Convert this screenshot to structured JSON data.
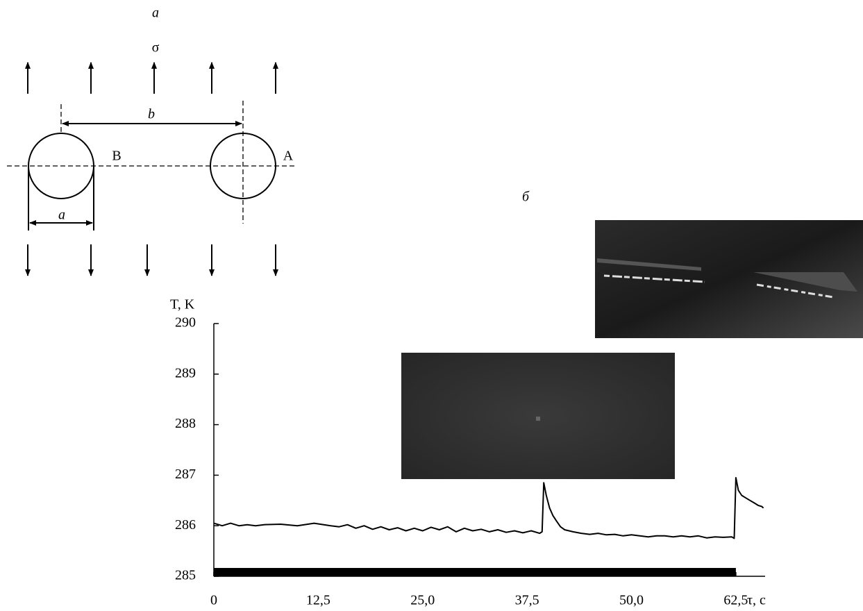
{
  "diagram": {
    "label": "a",
    "sigma": "σ",
    "b": "b",
    "point_b": "B",
    "point_a": "A",
    "a": "a"
  },
  "chart_data": {
    "type": "line",
    "panel_label": "б",
    "ylabel": "T, K",
    "xlabel": "τ, c",
    "x": [
      0,
      1,
      2,
      3,
      4,
      5,
      6,
      8,
      10,
      12,
      14,
      15,
      16,
      17,
      18,
      19,
      20,
      21,
      22,
      23,
      24,
      25,
      26,
      27,
      28,
      29,
      30,
      31,
      32,
      33,
      34,
      35,
      36,
      37,
      38,
      39,
      39.3,
      39.5,
      39.8,
      40.2,
      40.6,
      41,
      41.5,
      42,
      43,
      44,
      45,
      46,
      47,
      48,
      49,
      50,
      51,
      52,
      53,
      54,
      55,
      56,
      57,
      58,
      59,
      60,
      61,
      62,
      62.3,
      62.5,
      62.8,
      63.2,
      63.7,
      64.2,
      64.7,
      65.2,
      65.6,
      65.8
    ],
    "values": [
      286.05,
      286.0,
      286.05,
      286.0,
      286.02,
      286.0,
      286.02,
      286.03,
      286.0,
      286.05,
      286.0,
      285.98,
      286.02,
      285.95,
      286.0,
      285.93,
      285.98,
      285.92,
      285.96,
      285.9,
      285.95,
      285.9,
      285.97,
      285.92,
      285.98,
      285.88,
      285.95,
      285.9,
      285.93,
      285.88,
      285.92,
      285.87,
      285.9,
      285.86,
      285.9,
      285.85,
      285.88,
      286.85,
      286.6,
      286.35,
      286.2,
      286.1,
      285.98,
      285.92,
      285.88,
      285.85,
      285.83,
      285.85,
      285.82,
      285.83,
      285.8,
      285.82,
      285.8,
      285.78,
      285.8,
      285.8,
      285.78,
      285.8,
      285.78,
      285.8,
      285.76,
      285.78,
      285.77,
      285.78,
      285.75,
      286.95,
      286.7,
      286.6,
      286.55,
      286.5,
      286.45,
      286.4,
      286.38,
      286.35
    ],
    "color": "#000000",
    "load_interval": [
      0,
      62.5
    ],
    "xlim": [
      0,
      66
    ],
    "ylim": [
      285,
      290
    ],
    "xticks": [
      0,
      {
        "value": 12.5,
        "label": "12,5"
      },
      {
        "value": 25,
        "label": "25,0"
      },
      {
        "value": 37.5,
        "label": "37,5"
      },
      {
        "value": 50,
        "label": "50,0"
      },
      {
        "value": 62.5,
        "label": "62,5"
      }
    ],
    "yticks": [
      285,
      286,
      287,
      288,
      289,
      290
    ]
  }
}
